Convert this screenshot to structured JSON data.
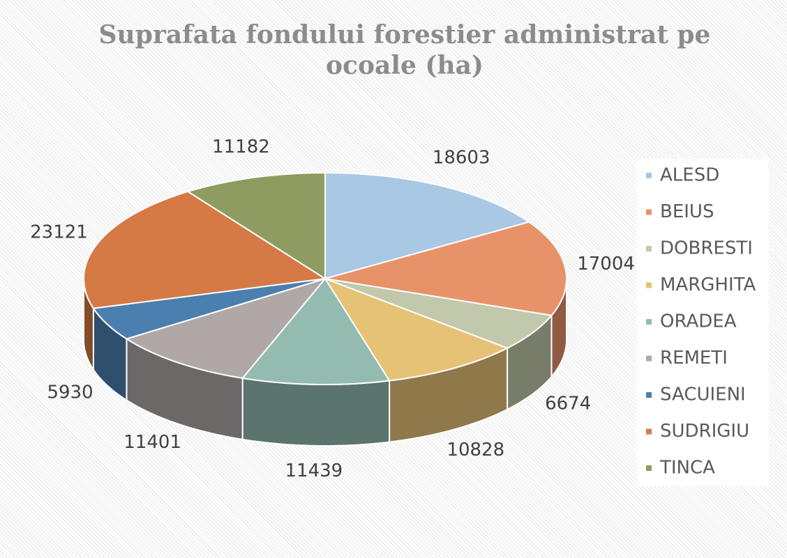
{
  "chart_data": {
    "type": "pie",
    "title": "Suprafata fondului forestier administrat pe ocoale (ha)",
    "categories": [
      "ALESD",
      "BEIUS",
      "DOBRESTI",
      "MARGHITA",
      "ORADEA",
      "REMETI",
      "SACUIENI",
      "SUDRIGIU",
      "TINCA"
    ],
    "values": [
      18603,
      17004,
      6674,
      10828,
      11439,
      11401,
      5930,
      23121,
      11182
    ],
    "colors": [
      "#a9c8e4",
      "#e8926a",
      "#c2c9aa",
      "#e6c277",
      "#93bbb0",
      "#b0a7a7",
      "#4a7fb0",
      "#d57a45",
      "#8e9c62"
    ],
    "legend": "right"
  }
}
